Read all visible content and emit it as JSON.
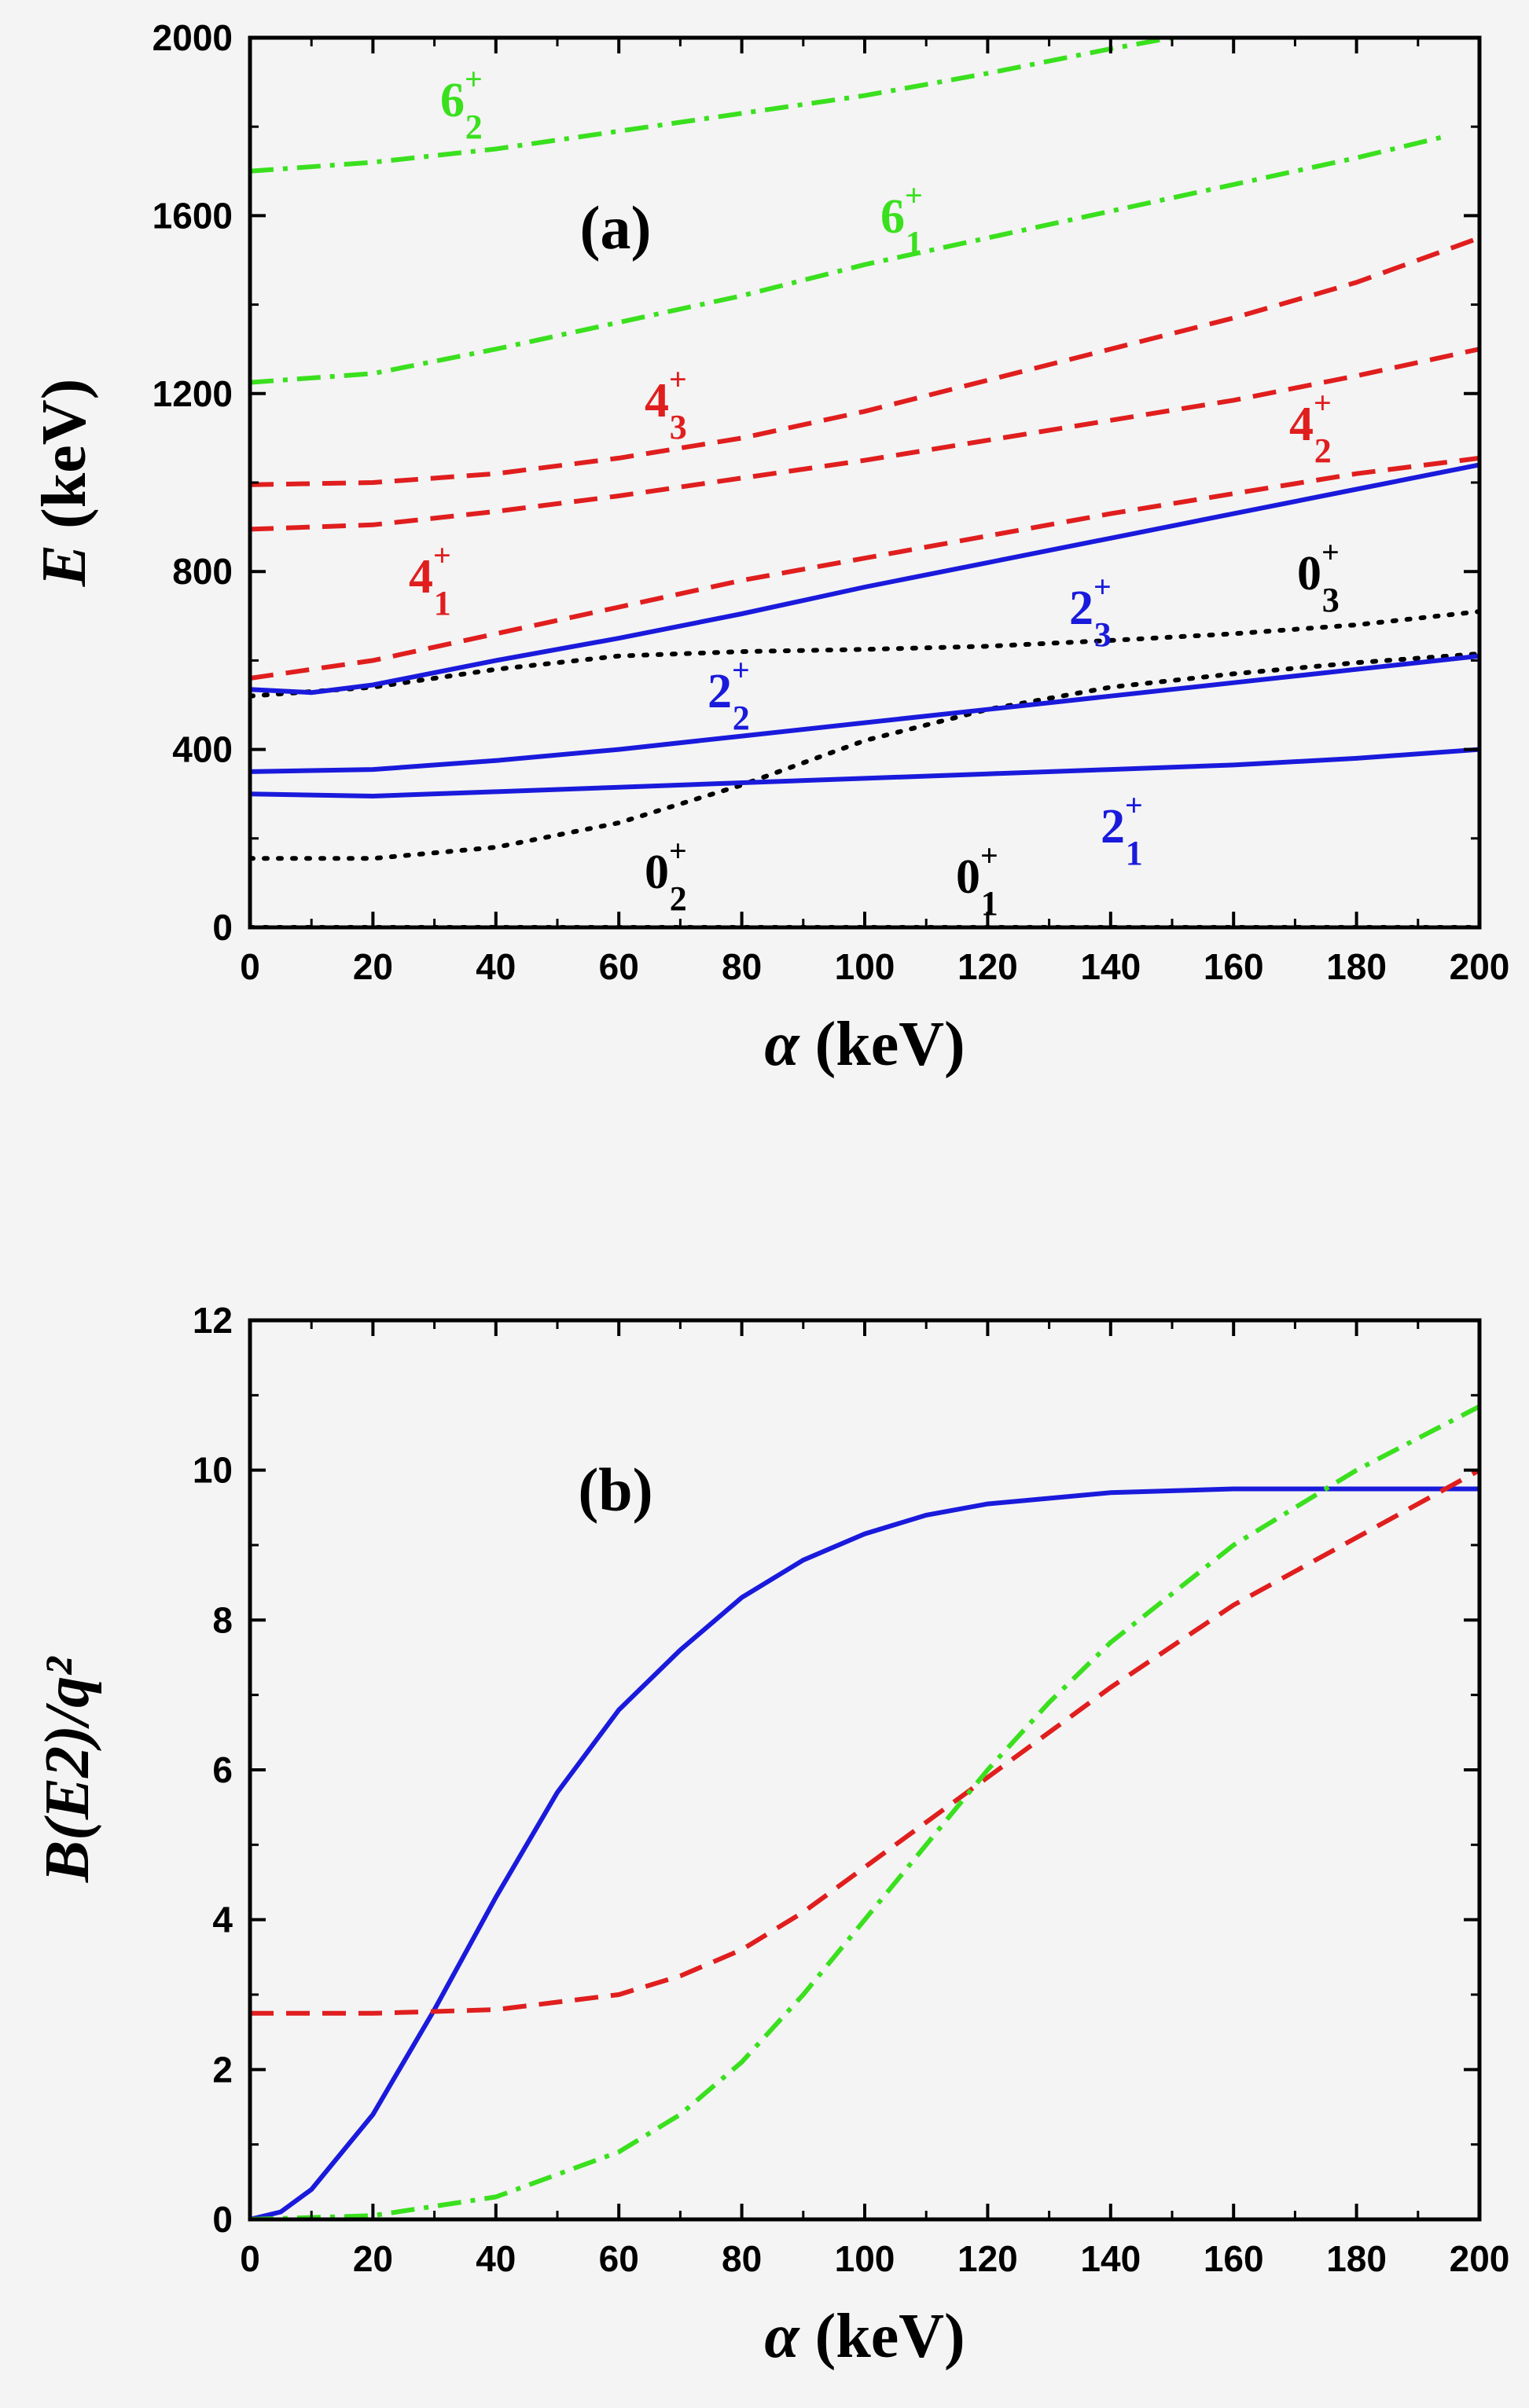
{
  "chart_data": [
    {
      "type": "line",
      "panel_label": "(a)",
      "xlabel": "α (keV)",
      "ylabel": "E (keV)",
      "xlim": [
        0,
        200
      ],
      "ylim": [
        0,
        2000
      ],
      "xticks": [
        0,
        20,
        40,
        60,
        80,
        100,
        120,
        140,
        160,
        180,
        200
      ],
      "yticks": [
        0,
        400,
        800,
        1200,
        1600,
        2000
      ],
      "grid": false,
      "series": [
        {
          "name": "0_1^+",
          "style": "dotted",
          "color": "#000000",
          "x": [
            0,
            50,
            100,
            150,
            200
          ],
          "y": [
            0,
            0,
            0,
            0,
            0
          ]
        },
        {
          "name": "0_2^+",
          "style": "dotted",
          "color": "#000000",
          "x": [
            0,
            20,
            40,
            60,
            80,
            100,
            120,
            140,
            160,
            180,
            200
          ],
          "y": [
            155,
            155,
            180,
            235,
            320,
            420,
            490,
            540,
            570,
            595,
            615
          ]
        },
        {
          "name": "0_3^+",
          "style": "dotted",
          "color": "#000000",
          "x": [
            0,
            20,
            40,
            60,
            80,
            100,
            120,
            140,
            160,
            180,
            200
          ],
          "y": [
            520,
            540,
            580,
            610,
            620,
            625,
            632,
            645,
            660,
            680,
            710
          ]
        },
        {
          "name": "2_1^+",
          "style": "solid",
          "color": "#1a1adc",
          "x": [
            0,
            20,
            40,
            60,
            80,
            100,
            120,
            140,
            160,
            180,
            200
          ],
          "y": [
            300,
            295,
            305,
            315,
            325,
            335,
            345,
            355,
            365,
            380,
            400
          ]
        },
        {
          "name": "2_2^+",
          "style": "solid",
          "color": "#1a1adc",
          "x": [
            0,
            20,
            40,
            60,
            80,
            100,
            120,
            140,
            160,
            180,
            200
          ],
          "y": [
            350,
            355,
            375,
            400,
            430,
            460,
            490,
            520,
            550,
            580,
            610
          ]
        },
        {
          "name": "2_3^+",
          "style": "solid",
          "color": "#1a1adc",
          "x": [
            0,
            10,
            20,
            40,
            60,
            80,
            100,
            120,
            140,
            160,
            180,
            200
          ],
          "y": [
            535,
            528,
            545,
            600,
            650,
            705,
            765,
            820,
            875,
            930,
            985,
            1040
          ]
        },
        {
          "name": "4_1^+",
          "style": "dashed",
          "color": "#e01e1e",
          "x": [
            0,
            20,
            40,
            60,
            80,
            100,
            120,
            140,
            160,
            180,
            200
          ],
          "y": [
            560,
            600,
            660,
            720,
            780,
            830,
            880,
            930,
            975,
            1020,
            1055
          ]
        },
        {
          "name": "4_2^+",
          "style": "dashed",
          "color": "#e01e1e",
          "x": [
            0,
            20,
            40,
            60,
            80,
            100,
            120,
            140,
            160,
            180,
            200
          ],
          "y": [
            895,
            905,
            935,
            970,
            1010,
            1050,
            1095,
            1140,
            1185,
            1240,
            1300
          ]
        },
        {
          "name": "4_3^+",
          "style": "dashed",
          "color": "#e01e1e",
          "x": [
            0,
            20,
            40,
            60,
            80,
            100,
            120,
            140,
            160,
            180,
            200
          ],
          "y": [
            995,
            1000,
            1020,
            1055,
            1100,
            1160,
            1230,
            1300,
            1370,
            1450,
            1550
          ]
        },
        {
          "name": "6_1^+",
          "style": "dashdot",
          "color": "#3ae01e",
          "x": [
            0,
            20,
            40,
            60,
            80,
            100,
            120,
            140,
            160,
            180,
            195
          ],
          "y": [
            1225,
            1245,
            1300,
            1360,
            1420,
            1490,
            1550,
            1610,
            1670,
            1730,
            1780
          ]
        },
        {
          "name": "6_2^+",
          "style": "dashdot",
          "color": "#3ae01e",
          "x": [
            0,
            20,
            40,
            60,
            80,
            100,
            120,
            140,
            150
          ],
          "y": [
            1700,
            1720,
            1750,
            1790,
            1830,
            1870,
            1920,
            1975,
            2000
          ]
        }
      ]
    },
    {
      "type": "line",
      "panel_label": "(b)",
      "xlabel": "α (keV)",
      "ylabel": "B(E2)/q²",
      "xlim": [
        0,
        200
      ],
      "ylim": [
        0,
        12
      ],
      "xticks": [
        0,
        20,
        40,
        60,
        80,
        100,
        120,
        140,
        160,
        180,
        200
      ],
      "yticks": [
        0,
        2,
        4,
        6,
        8,
        10,
        12
      ],
      "grid": false,
      "series": [
        {
          "style": "solid",
          "color": "#1a1adc",
          "x": [
            0,
            5,
            10,
            20,
            30,
            40,
            50,
            60,
            70,
            80,
            90,
            100,
            110,
            120,
            140,
            160,
            180,
            200
          ],
          "y": [
            0.0,
            0.1,
            0.4,
            1.4,
            2.8,
            4.3,
            5.7,
            6.8,
            7.6,
            8.3,
            8.8,
            9.15,
            9.4,
            9.55,
            9.7,
            9.75,
            9.75,
            9.75
          ]
        },
        {
          "style": "dashed",
          "color": "#e01e1e",
          "x": [
            0,
            20,
            40,
            60,
            70,
            80,
            90,
            100,
            110,
            120,
            140,
            160,
            180,
            200
          ],
          "y": [
            2.75,
            2.75,
            2.8,
            3.0,
            3.25,
            3.6,
            4.1,
            4.7,
            5.3,
            5.9,
            7.1,
            8.2,
            9.1,
            10.0
          ]
        },
        {
          "style": "dashdot",
          "color": "#3ae01e",
          "x": [
            0,
            20,
            40,
            60,
            70,
            80,
            90,
            100,
            110,
            120,
            130,
            140,
            160,
            180,
            200
          ],
          "y": [
            0.0,
            0.05,
            0.3,
            0.9,
            1.4,
            2.1,
            3.0,
            4.0,
            5.0,
            6.0,
            6.9,
            7.7,
            9.0,
            10.0,
            10.85
          ]
        }
      ]
    }
  ]
}
